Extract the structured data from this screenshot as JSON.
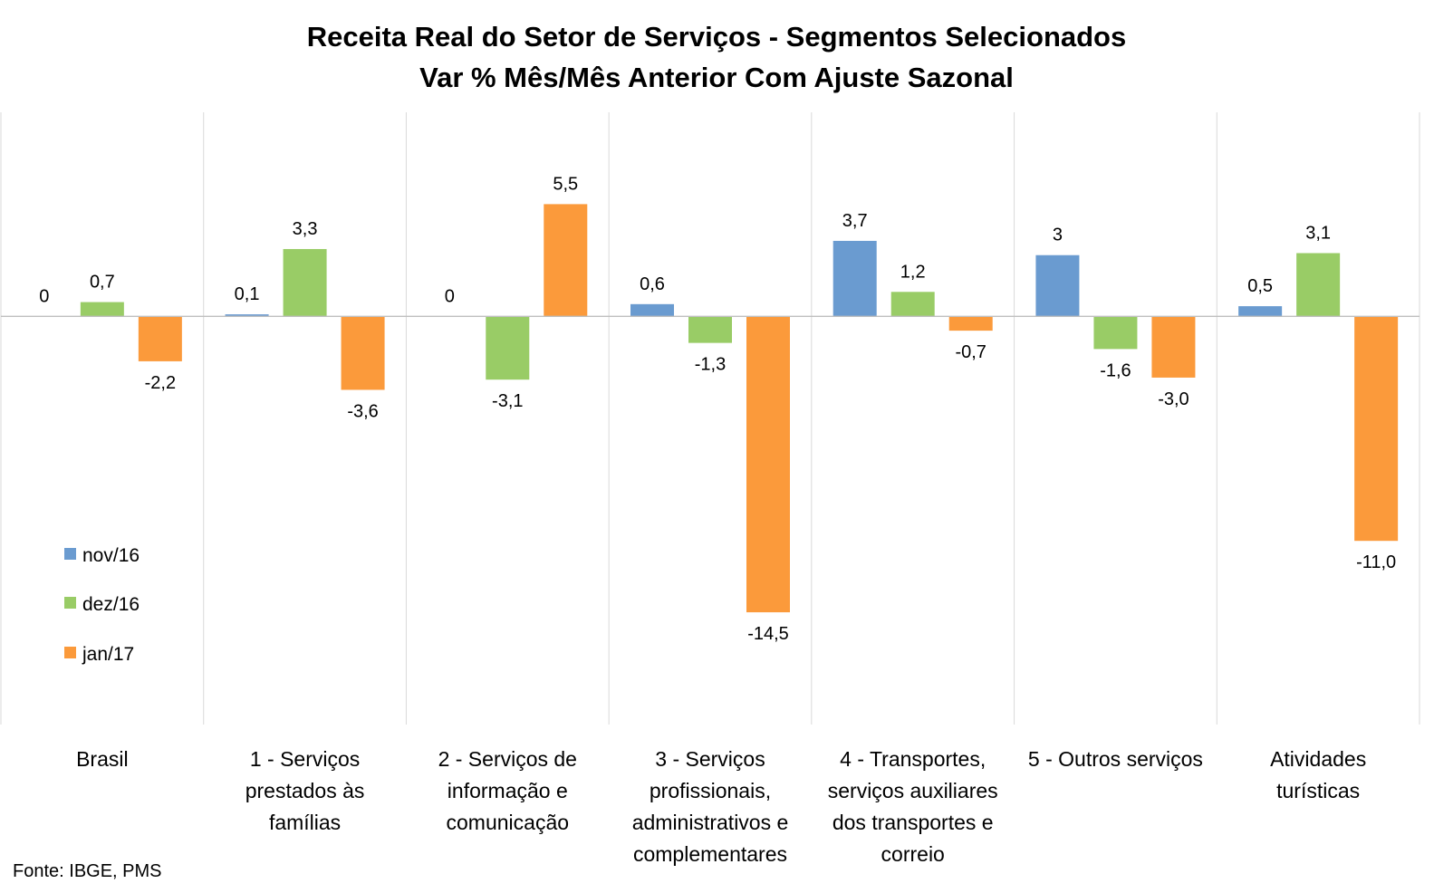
{
  "chart_data": {
    "type": "bar",
    "title": "Receita Real do Setor de Serviços - Segmentos Selecionados",
    "subtitle": "Var % Mês/Mês Anterior Com Ajuste Sazonal",
    "categories": [
      "Brasil",
      "1 - Serviços prestados às famílias",
      "2 - Serviços de informação e comunicação",
      "3 - Serviços profissionais, administrativos e complementares",
      "4 - Transportes, serviços auxiliares dos transportes e correio",
      "5 - Outros serviços",
      "Atividades turísticas"
    ],
    "category_lines": [
      [
        "Brasil"
      ],
      [
        "1 - Serviços",
        "prestados às",
        "famílias"
      ],
      [
        "2 - Serviços de",
        "informação e",
        "comunicação"
      ],
      [
        "3 - Serviços",
        "profissionais,",
        "administrativos e",
        "complementares"
      ],
      [
        "4 - Transportes,",
        "serviços auxiliares",
        "dos transportes e",
        "correio"
      ],
      [
        "5 - Outros serviços"
      ],
      [
        "Atividades",
        "turísticas"
      ]
    ],
    "series": [
      {
        "name": "nov/16",
        "color": "#6a9bd0",
        "values": [
          0,
          0.1,
          0,
          0.6,
          3.7,
          3,
          0.5
        ],
        "labels": [
          "0",
          "0,1",
          "0",
          "0,6",
          "3,7",
          "3",
          "0,5"
        ]
      },
      {
        "name": "dez/16",
        "color": "#99cc66",
        "values": [
          0.7,
          3.3,
          -3.1,
          -1.3,
          1.2,
          -1.6,
          3.1
        ],
        "labels": [
          "0,7",
          "3,3",
          "-3,1",
          "-1,3",
          "1,2",
          "-1,6",
          "3,1"
        ]
      },
      {
        "name": "jan/17",
        "color": "#fb9a3b",
        "values": [
          -2.2,
          -3.6,
          5.5,
          -14.5,
          -0.7,
          -3.0,
          -11.0
        ],
        "labels": [
          "-2,2",
          "-3,6",
          "5,5",
          "-14,5",
          "-0,7",
          "-3,0",
          "-11,0"
        ]
      }
    ],
    "ylim": [
      -20,
      10
    ],
    "legend_position": "left",
    "grid": false,
    "source": "Fonte: IBGE, PMS"
  }
}
